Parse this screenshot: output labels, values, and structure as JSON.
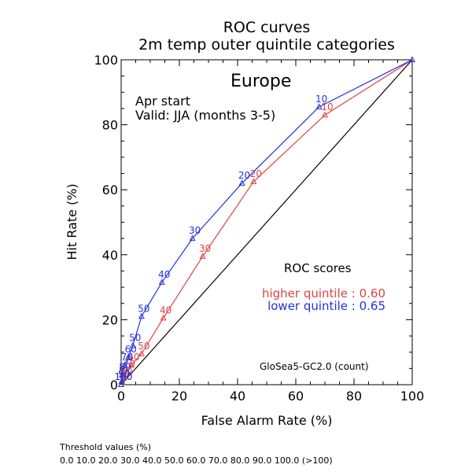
{
  "chart_data": {
    "type": "line",
    "title": "ROC curves",
    "subtitle": "2m temp outer quintile categories",
    "region": "Europe",
    "start": "Apr start",
    "valid": "Valid: JJA (months 3-5)",
    "xlabel": "False Alarm Rate (%)",
    "ylabel": "Hit Rate (%)",
    "xlim": [
      0,
      100
    ],
    "ylim": [
      0,
      100
    ],
    "xticks": [
      "0",
      "20",
      "40",
      "60",
      "80",
      "100"
    ],
    "yticks": [
      "0",
      "20",
      "40",
      "60",
      "80",
      "100"
    ],
    "scores_title": "ROC scores",
    "model": "GloSea5-GC2.0 (count)",
    "threshold_title": "Threshold values (%)",
    "threshold_values": "0.0 10.0 20.0 30.0 40.0 50.0 60.0 70.0 80.0 90.0 100.0 (>100)",
    "series": [
      {
        "name": "higher quintile",
        "score_label": "higher quintile : 0.60",
        "color": "#dd4444",
        "x": [
          0,
          0.3,
          1,
          2,
          3.5,
          7,
          14.5,
          28,
          45.5,
          70,
          100
        ],
        "y": [
          0,
          0.7,
          2,
          4,
          6,
          9.5,
          20.5,
          39.5,
          62.5,
          83,
          100
        ],
        "labels": [
          "100",
          "90",
          "80",
          "70",
          "60",
          "50",
          "40",
          "30",
          "20",
          "10",
          ""
        ]
      },
      {
        "name": "lower quintile",
        "score_label": "lower quintile : 0.65",
        "color": "#2233dd",
        "x": [
          0,
          0.2,
          0.5,
          1.2,
          2.5,
          4,
          7,
          14,
          24.5,
          41.5,
          68,
          100
        ],
        "y": [
          0,
          1,
          3,
          6,
          8.5,
          12,
          21,
          31.5,
          45,
          62,
          85.5,
          100
        ],
        "labels": [
          "100",
          "90",
          "80",
          "70",
          "60",
          "50",
          "50",
          "40",
          "30",
          "20",
          "10",
          ""
        ]
      }
    ]
  }
}
